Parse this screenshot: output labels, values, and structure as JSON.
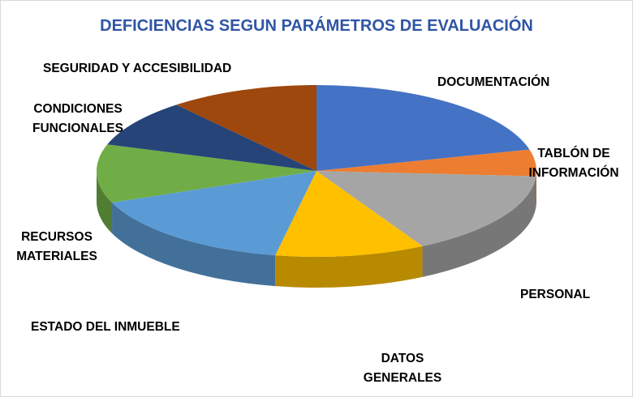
{
  "chart_data": {
    "type": "pie",
    "title": "DEFICIENCIAS SEGUN PARÁMETROS DE EVALUACIÓN",
    "slices": [
      {
        "label": "DOCUMENTACIÓN",
        "value": 21,
        "color": "#4472c4"
      },
      {
        "label": "TABLÓN DE INFORMACIÓN",
        "value": 5,
        "color": "#ed7d31"
      },
      {
        "label": "PERSONAL",
        "value": 16,
        "color": "#a5a5a5"
      },
      {
        "label": "DATOS GENERALES",
        "value": 11,
        "color": "#ffc000"
      },
      {
        "label": "ESTADO DEL INMUEBLE",
        "value": 16,
        "color": "#5b9bd5"
      },
      {
        "label": "RECURSOS MATERIALES",
        "value": 11,
        "color": "#70ad47"
      },
      {
        "label": "CONDICIONES FUNCIONALES",
        "value": 9,
        "color": "#264478"
      },
      {
        "label": "SEGURIDAD Y ACCESIBILIDAD",
        "value": 11,
        "color": "#9e480e"
      }
    ]
  }
}
